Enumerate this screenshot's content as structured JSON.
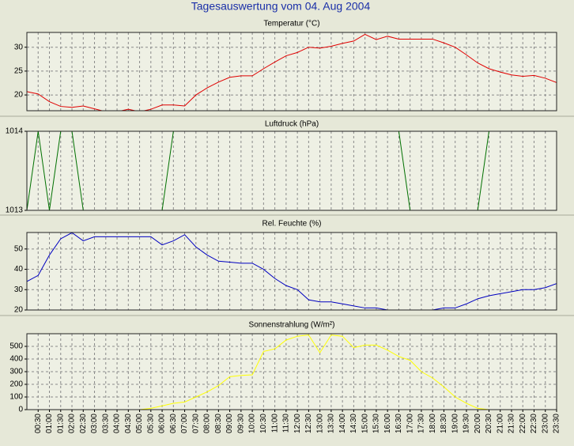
{
  "title": "Tagesauswertung vom 04. Aug 2004",
  "chart_data": [
    {
      "type": "line",
      "title": "Temperatur (°C)",
      "color": "#e00000",
      "ylim": [
        16.7,
        33.1
      ],
      "yticks": [
        20,
        25,
        30
      ],
      "grid": true,
      "values": [
        20.7,
        20.2,
        18.6,
        17.6,
        17.4,
        17.7,
        17.1,
        16.5,
        16.5,
        17.0,
        16.5,
        17.0,
        17.9,
        17.9,
        17.7,
        20.0,
        21.5,
        22.7,
        23.7,
        24.0,
        24.0,
        25.5,
        26.9,
        28.2,
        28.9,
        30.0,
        29.8,
        30.2,
        30.8,
        31.3,
        32.7,
        31.6,
        32.3,
        31.7,
        31.7,
        31.7,
        31.7,
        30.9,
        30.0,
        28.4,
        26.7,
        25.5,
        24.8,
        24.2,
        23.9,
        24.1,
        23.5,
        22.6
      ]
    },
    {
      "type": "line",
      "title": "Luftdruck (hPa)",
      "color": "#007000",
      "ylim": [
        1013,
        1014
      ],
      "yticks": [
        1013,
        1014
      ],
      "grid": true,
      "values": [
        1013,
        1014,
        1013,
        1014,
        1014,
        1013,
        1013,
        1013,
        1013,
        1013,
        1013,
        1013,
        1013,
        1014,
        1014,
        1014,
        1014,
        1014,
        1014,
        1014,
        1014,
        1014,
        1014,
        1014,
        1014,
        1014,
        1014,
        1014,
        1014,
        1014,
        1014,
        1014,
        1014,
        1014,
        1013,
        1013,
        1013,
        1013,
        1013,
        1013,
        1013,
        1014,
        1014,
        1014,
        1014,
        1014,
        1014,
        1014
      ]
    },
    {
      "type": "line",
      "title": "Rel. Feuchte (%)",
      "color": "#0000c0",
      "ylim": [
        20,
        58.1
      ],
      "yticks": [
        20,
        30,
        40,
        50
      ],
      "grid": true,
      "values": [
        34,
        37,
        47,
        55,
        58,
        54,
        56,
        56,
        56,
        56,
        56,
        56,
        52,
        54,
        57,
        51,
        47,
        44,
        43.5,
        43,
        43,
        40,
        35.5,
        32,
        30,
        25,
        24,
        24,
        23,
        22,
        21,
        21,
        20,
        19.5,
        19.5,
        19.5,
        20,
        21,
        21,
        23,
        25.5,
        27,
        28,
        29,
        30,
        30,
        31,
        33
      ]
    },
    {
      "type": "line",
      "title": "Sonnenstrahlung (W/m²)",
      "color": "#ffff00",
      "ylim": [
        0,
        600
      ],
      "yticks": [
        0,
        100,
        200,
        300,
        400,
        500
      ],
      "grid": true,
      "values": [
        0,
        0,
        0,
        0,
        0,
        0,
        0,
        0,
        0,
        0,
        0,
        10,
        30,
        50,
        60,
        100,
        140,
        190,
        260,
        270,
        275,
        460,
        480,
        550,
        580,
        590,
        450,
        590,
        580,
        490,
        510,
        510,
        470,
        420,
        390,
        300,
        250,
        180,
        100,
        50,
        10,
        0,
        0,
        0,
        0,
        0,
        0,
        0
      ],
      "categories": [
        null,
        "00:30",
        "01:00",
        "01:30",
        "02:00",
        "02:30",
        "03:00",
        "03:30",
        "04:00",
        "04:30",
        "05:00",
        "05:30",
        "06:00",
        "06:30",
        "07:00",
        "07:30",
        "08:00",
        "08:30",
        "09:00",
        "09:30",
        "10:00",
        "10:30",
        "11:00",
        "11:30",
        "12:00",
        "12:30",
        "13:00",
        "13:30",
        "14:00",
        "14:30",
        "15:00",
        "15:30",
        "16:00",
        "16:30",
        "17:00",
        "17:30",
        "18:00",
        "18:30",
        "19:00",
        "19:30",
        "20:00",
        "20:30",
        "21:00",
        "21:30",
        "22:00",
        "22:30",
        "23:00",
        "23:30"
      ]
    }
  ]
}
